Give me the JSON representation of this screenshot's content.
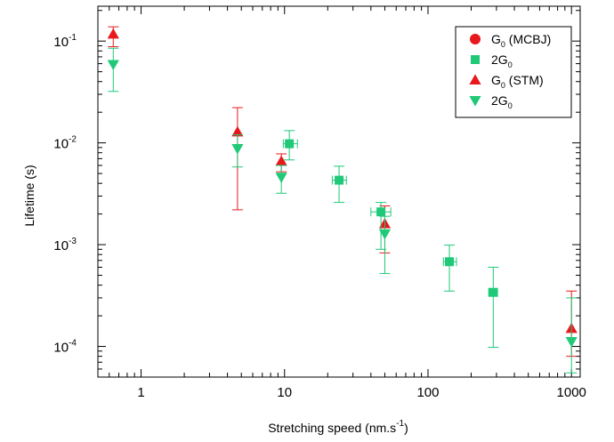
{
  "chart_data": {
    "type": "scatter",
    "xlabel": "Stretching speed (nm.s",
    "xlabel_sup": "-1",
    "xlabel_end": ")",
    "ylabel": "Lifetime (s)",
    "x_scale": "log",
    "y_scale": "log",
    "xlim": [
      0.5,
      1150
    ],
    "ylim": [
      5e-05,
      0.22
    ],
    "grid": false,
    "legend_position": "top-right",
    "x_tick_labels": [
      {
        "value": 1,
        "label": "1"
      },
      {
        "value": 10,
        "label": "10"
      },
      {
        "value": 100,
        "label": "100"
      },
      {
        "value": 1000,
        "label": "1000"
      }
    ],
    "y_tick_labels": [
      {
        "value": 0.1,
        "base": "10",
        "exp": "-1"
      },
      {
        "value": 0.01,
        "base": "10",
        "exp": "-2"
      },
      {
        "value": 0.001,
        "base": "10",
        "exp": "-3"
      },
      {
        "value": 0.0001,
        "base": "10",
        "exp": "-4"
      }
    ],
    "series": [
      {
        "name": "G0 (MCBJ)",
        "legend_main": "G",
        "legend_sub": "0",
        "legend_rest": " (MCBJ)",
        "marker": "circle",
        "color": "#e8191c",
        "points": []
      },
      {
        "name": "2G0",
        "legend_main": "2G",
        "legend_sub": "0",
        "legend_rest": "",
        "marker": "square",
        "color": "#1fc978",
        "points": [
          {
            "x": 10.8,
            "y": 0.0098,
            "y_err": [
              0.0068,
              0.0132
            ],
            "x_err": [
              9.8,
              12.3
            ]
          },
          {
            "x": 24,
            "y": 0.0043,
            "y_err": [
              0.0026,
              0.0059
            ],
            "x_err": [
              21.5,
              27
            ]
          },
          {
            "x": 47,
            "y": 0.0021,
            "y_err": [
              0.0009,
              0.0026
            ],
            "x_err": [
              40,
              55
            ]
          },
          {
            "x": 141,
            "y": 0.00068,
            "y_err": [
              0.00035,
              0.00099
            ],
            "x_err": [
              128,
              158
            ]
          },
          {
            "x": 285,
            "y": 0.00034,
            "y_err": [
              9.8e-05,
              0.0006
            ],
            "x_err": [
              265,
              305
            ]
          }
        ]
      },
      {
        "name": "G0 (STM)",
        "legend_main": "G",
        "legend_sub": "0",
        "legend_rest": " (STM)",
        "marker": "triangle-up",
        "color": "#e8191c",
        "points": [
          {
            "x": 0.64,
            "y": 0.117,
            "y_err": [
              0.088,
              0.138
            ]
          },
          {
            "x": 4.7,
            "y": 0.0128,
            "y_err": [
              0.0022,
              0.0222
            ]
          },
          {
            "x": 9.5,
            "y": 0.0066,
            "y_err": [
              0.0052,
              0.0078
            ]
          },
          {
            "x": 50,
            "y": 0.0016,
            "y_err": [
              0.00083,
              0.0024
            ]
          },
          {
            "x": 1000,
            "y": 0.00015,
            "y_err": [
              8e-05,
              0.00035
            ]
          }
        ]
      },
      {
        "name": "2G0",
        "legend_main": "2G",
        "legend_sub": "0",
        "legend_rest": "",
        "marker": "triangle-down",
        "color": "#1fc978",
        "points": [
          {
            "x": 0.64,
            "y": 0.059,
            "y_err": [
              0.032,
              0.085
            ]
          },
          {
            "x": 4.7,
            "y": 0.0088,
            "y_err": [
              0.0058,
              0.012
            ]
          },
          {
            "x": 9.5,
            "y": 0.0046,
            "y_err": [
              0.0032,
              0.006
            ]
          },
          {
            "x": 50,
            "y": 0.00128,
            "y_err": [
              0.00052,
              0.0019
            ]
          },
          {
            "x": 1000,
            "y": 0.000112,
            "y_err": [
              5.5e-05,
              0.0003
            ]
          }
        ]
      }
    ]
  }
}
